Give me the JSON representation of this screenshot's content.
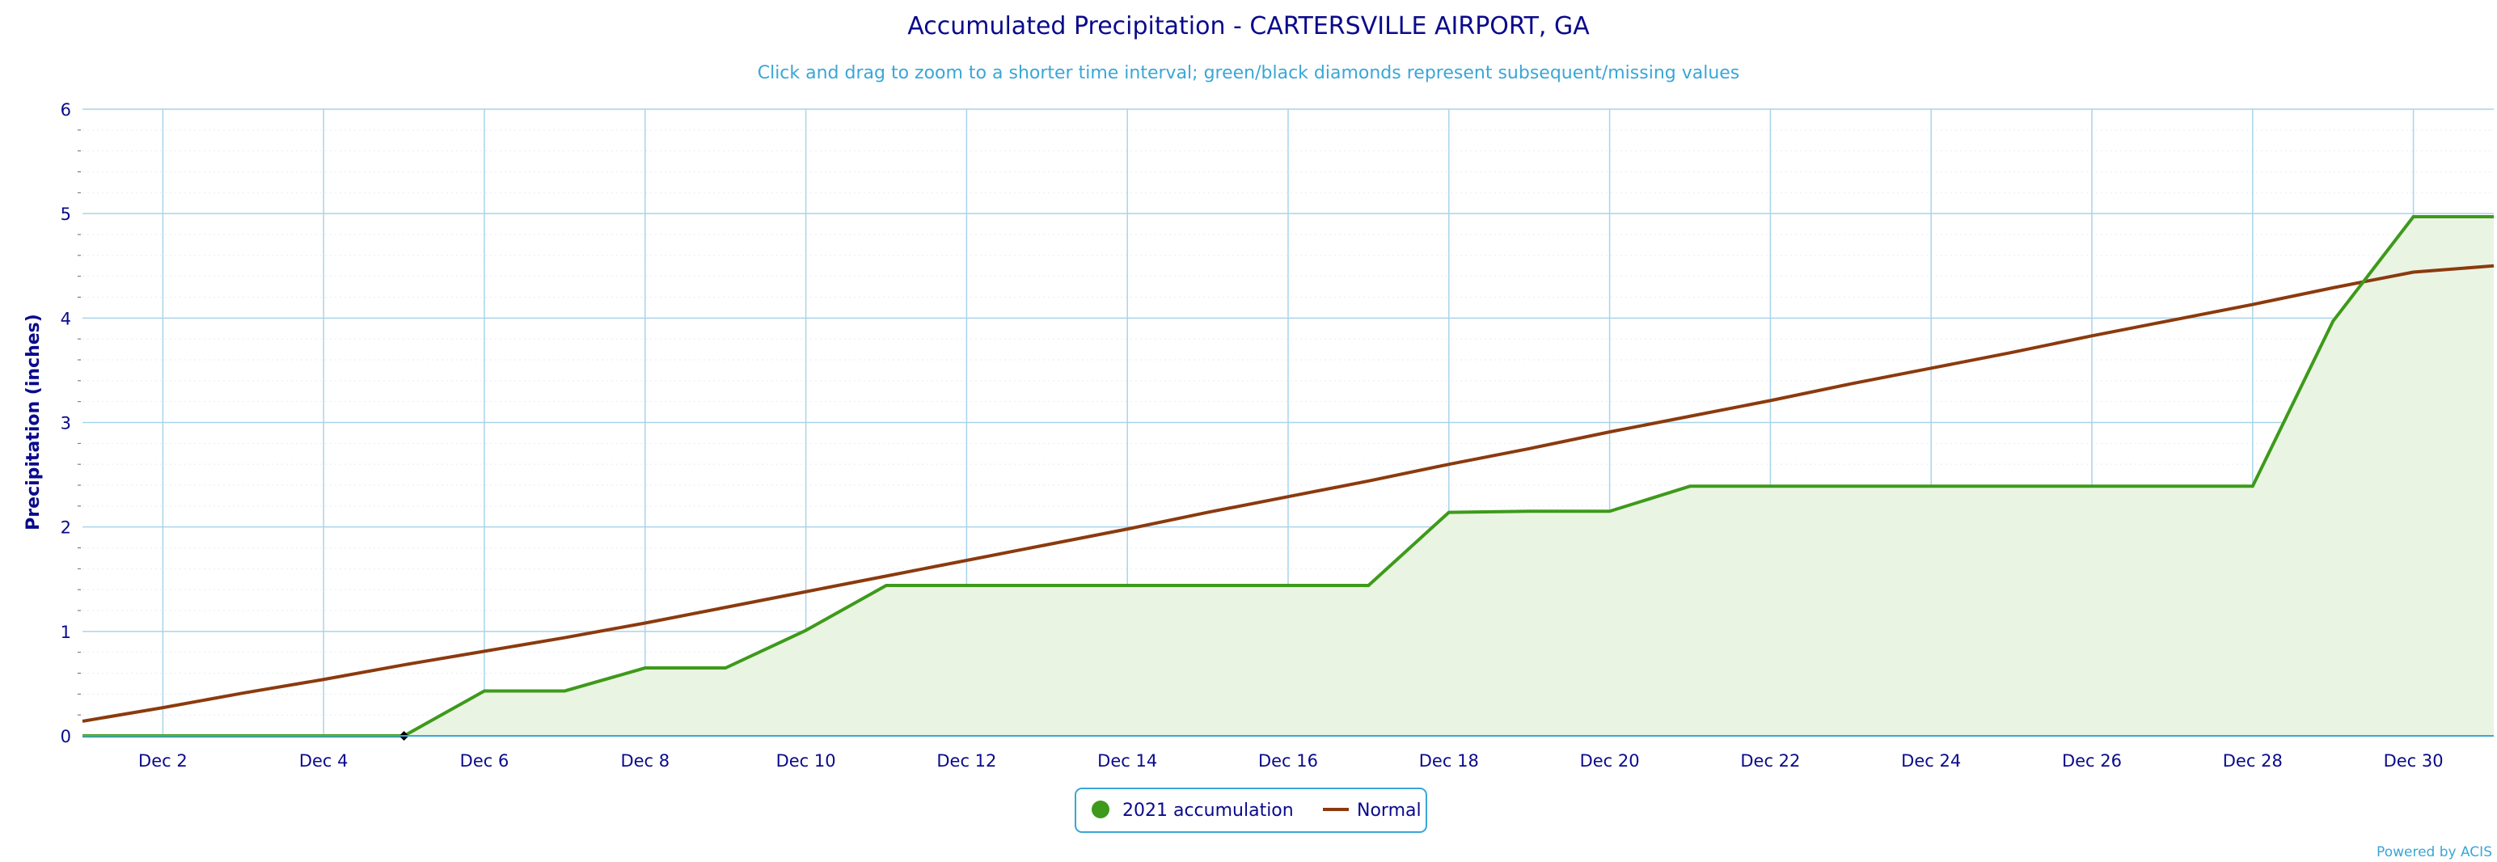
{
  "chart_data": {
    "type": "area",
    "title": "Accumulated Precipitation - CARTERSVILLE AIRPORT, GA",
    "subtitle": "Click and drag to zoom to a shorter time interval; green/black diamonds represent subsequent/missing values",
    "xlabel": "",
    "ylabel": "Precipitation (inches)",
    "ylim": [
      0,
      6
    ],
    "xlim": [
      1,
      31
    ],
    "yticks": [
      "0",
      "1",
      "2",
      "3",
      "4",
      "5",
      "6"
    ],
    "xtick_values": [
      2,
      4,
      6,
      8,
      10,
      12,
      14,
      16,
      18,
      20,
      22,
      24,
      26,
      28,
      30
    ],
    "xtick_labels": [
      "Dec 2",
      "Dec 4",
      "Dec 6",
      "Dec 8",
      "Dec 10",
      "Dec 12",
      "Dec 14",
      "Dec 16",
      "Dec 18",
      "Dec 20",
      "Dec 22",
      "Dec 24",
      "Dec 26",
      "Dec 28",
      "Dec 30"
    ],
    "grid": true,
    "legend_position": "bottom-center",
    "series": [
      {
        "name": "2021 accumulation",
        "color": "#3d9a1a",
        "fill": "#eaf4e3",
        "x": [
          1,
          2,
          3,
          4,
          5,
          6,
          7,
          8,
          9,
          10,
          11,
          12,
          13,
          14,
          15,
          16,
          17,
          18,
          19,
          20,
          21,
          22,
          23,
          24,
          25,
          26,
          27,
          28,
          29,
          30,
          31
        ],
        "values": [
          0.0,
          0.0,
          0.0,
          0.0,
          0.0,
          0.43,
          0.43,
          0.65,
          0.65,
          1.01,
          1.44,
          1.44,
          1.44,
          1.44,
          1.44,
          1.44,
          1.44,
          2.14,
          2.15,
          2.15,
          2.39,
          2.39,
          2.39,
          2.39,
          2.39,
          2.39,
          2.39,
          2.39,
          3.97,
          4.97,
          4.97
        ]
      },
      {
        "name": "Normal",
        "color": "#8b3a0e",
        "x": [
          1,
          2,
          3,
          4,
          5,
          6,
          7,
          8,
          9,
          10,
          11,
          12,
          13,
          14,
          15,
          16,
          17,
          18,
          19,
          20,
          21,
          22,
          23,
          24,
          25,
          26,
          27,
          28,
          29,
          30,
          31
        ],
        "values": [
          0.14,
          0.27,
          0.41,
          0.54,
          0.68,
          0.81,
          0.94,
          1.08,
          1.23,
          1.38,
          1.53,
          1.68,
          1.83,
          1.98,
          2.14,
          2.29,
          2.44,
          2.6,
          2.75,
          2.91,
          3.06,
          3.21,
          3.37,
          3.52,
          3.67,
          3.83,
          3.98,
          4.13,
          4.29,
          4.44,
          4.5
        ]
      }
    ],
    "missing_markers": [
      {
        "x": 5,
        "y": 0.0,
        "color": "#000000"
      }
    ],
    "credits": "Powered by ACIS"
  }
}
